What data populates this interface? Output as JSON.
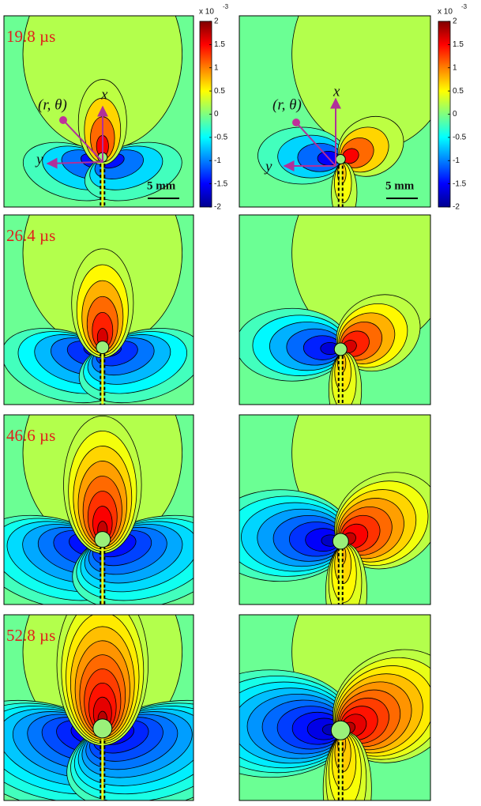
{
  "panels": [
    {
      "time_label": "19.8 µs"
    },
    {
      "time_label": "26.4 µs"
    },
    {
      "time_label": "46.6 µs"
    },
    {
      "time_label": "52.8 µs"
    }
  ],
  "annotations": {
    "polar_label": "(r, θ)",
    "x_axis": "x",
    "y_axis": "y",
    "scale_bar": "5 mm"
  },
  "colorbar": {
    "exponent_base": "x 10",
    "exponent": "-3",
    "range": [
      -2,
      2
    ],
    "ticks": [
      2,
      1.5,
      1,
      0.5,
      0,
      -0.5,
      -1,
      -1.5,
      -2
    ]
  }
}
